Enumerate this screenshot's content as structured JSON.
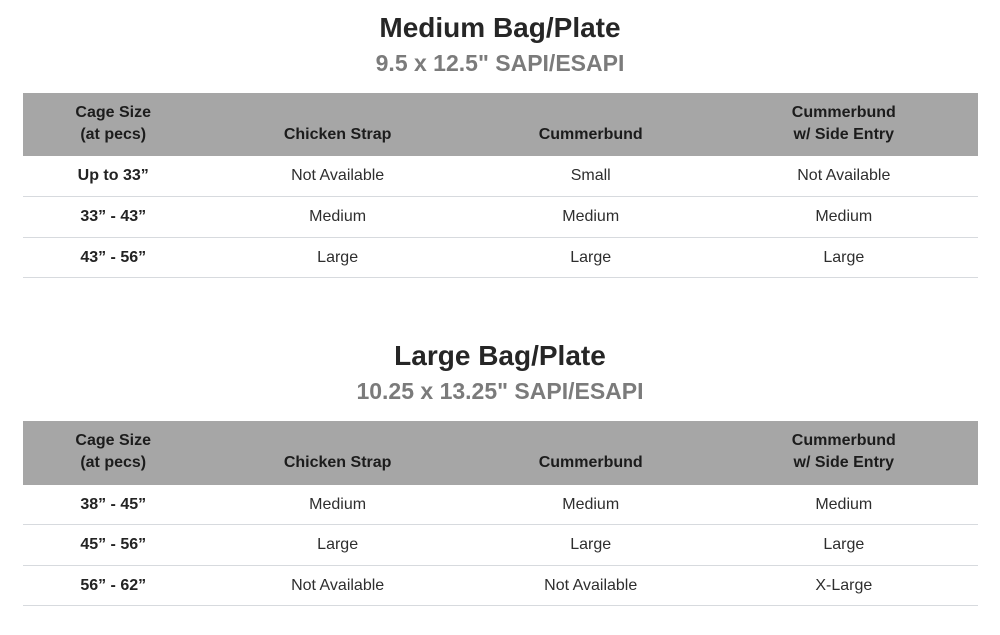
{
  "colors": {
    "header_background": "#a6a6a6",
    "header_text": "#1c1c1c",
    "body_text": "#2e2e2e",
    "title_text": "#262626",
    "subtitle_text": "#7b7b7b",
    "row_divider": "#d7dade",
    "page_background": "#ffffff"
  },
  "tables": [
    {
      "title": "Medium Bag/Plate",
      "subtitle": "9.5 x 12.5\" SAPI/ESAPI",
      "columns": [
        "Cage Size\n(at pecs)",
        "Chicken Strap",
        "Cummerbund",
        "Cummerbund\nw/ Side Entry"
      ],
      "rows": [
        [
          "Up to 33”",
          "Not Available",
          "Small",
          "Not Available"
        ],
        [
          "33” - 43”",
          "Medium",
          "Medium",
          "Medium"
        ],
        [
          "43” - 56”",
          "Large",
          "Large",
          "Large"
        ]
      ]
    },
    {
      "title": "Large Bag/Plate",
      "subtitle": "10.25 x 13.25\" SAPI/ESAPI",
      "columns": [
        "Cage Size\n(at pecs)",
        "Chicken Strap",
        "Cummerbund",
        "Cummerbund\nw/ Side Entry"
      ],
      "rows": [
        [
          "38” - 45”",
          "Medium",
          "Medium",
          "Medium"
        ],
        [
          "45” - 56”",
          "Large",
          "Large",
          "Large"
        ],
        [
          "56” - 62”",
          "Not Available",
          "Not Available",
          "X-Large"
        ]
      ]
    }
  ]
}
